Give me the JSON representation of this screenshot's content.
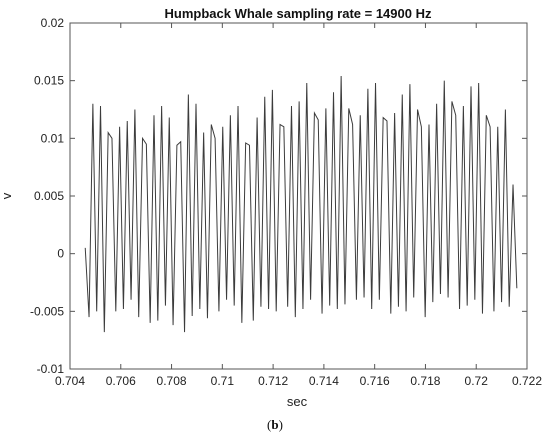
{
  "chart_data": {
    "type": "line",
    "title": "Humpback Whale sampling rate = 14900 Hz",
    "xlabel": "sec",
    "ylabel": "v",
    "xlim": [
      0.704,
      0.722
    ],
    "ylim": [
      -0.01,
      0.02
    ],
    "xticks": [
      "0.704",
      "0.706",
      "0.708",
      "0.71",
      "0.712",
      "0.714",
      "0.716",
      "0.718",
      "0.72",
      "0.722"
    ],
    "yticks": [
      "-0.01",
      "-0.005",
      "0",
      "0.005",
      "0.01",
      "0.015",
      "0.02"
    ],
    "grid": false,
    "box": true,
    "series": [
      {
        "line_color": "#3c3c3c",
        "sample_rate_hz": 14900,
        "x_start": 0.7046,
        "x_end": 0.7216,
        "values": [
          0.0005,
          -0.0055,
          0.013,
          -0.005,
          0.0128,
          -0.0068,
          0.0105,
          0.01,
          -0.005,
          0.011,
          -0.0048,
          0.0115,
          -0.004,
          0.0125,
          -0.0055,
          0.01,
          0.0095,
          -0.006,
          0.012,
          -0.0058,
          0.0128,
          -0.0045,
          0.0118,
          -0.0062,
          0.0094,
          0.0097,
          -0.0068,
          0.0138,
          -0.0054,
          0.013,
          -0.0048,
          0.0105,
          -0.0056,
          0.0112,
          0.01,
          -0.005,
          0.011,
          -0.004,
          0.012,
          -0.0045,
          0.0128,
          -0.006,
          0.0096,
          0.0094,
          -0.0058,
          0.0118,
          -0.0046,
          0.0136,
          -0.0048,
          0.0142,
          -0.005,
          0.0112,
          0.011,
          -0.0046,
          0.0128,
          -0.0055,
          0.0132,
          -0.0048,
          0.0148,
          -0.004,
          0.0122,
          0.0116,
          -0.0052,
          0.0126,
          -0.0045,
          0.014,
          -0.0048,
          0.0154,
          -0.0044,
          0.0126,
          0.0112,
          -0.004,
          0.012,
          -0.0038,
          0.0143,
          -0.0048,
          0.0148,
          -0.004,
          0.0118,
          0.0115,
          -0.0052,
          0.0122,
          -0.0046,
          0.0138,
          -0.005,
          0.0147,
          -0.0038,
          0.0125,
          0.011,
          -0.0055,
          0.0112,
          -0.0042,
          0.013,
          -0.0035,
          0.015,
          -0.0038,
          0.0132,
          0.012,
          -0.0048,
          0.0128,
          -0.0045,
          0.0145,
          -0.004,
          0.0148,
          -0.0052,
          0.012,
          0.011,
          -0.005,
          0.011,
          -0.0042,
          0.0125,
          -0.0046,
          0.006,
          -0.003
        ]
      }
    ]
  },
  "caption": {
    "open": "(",
    "letter": "b",
    "close": ")"
  }
}
